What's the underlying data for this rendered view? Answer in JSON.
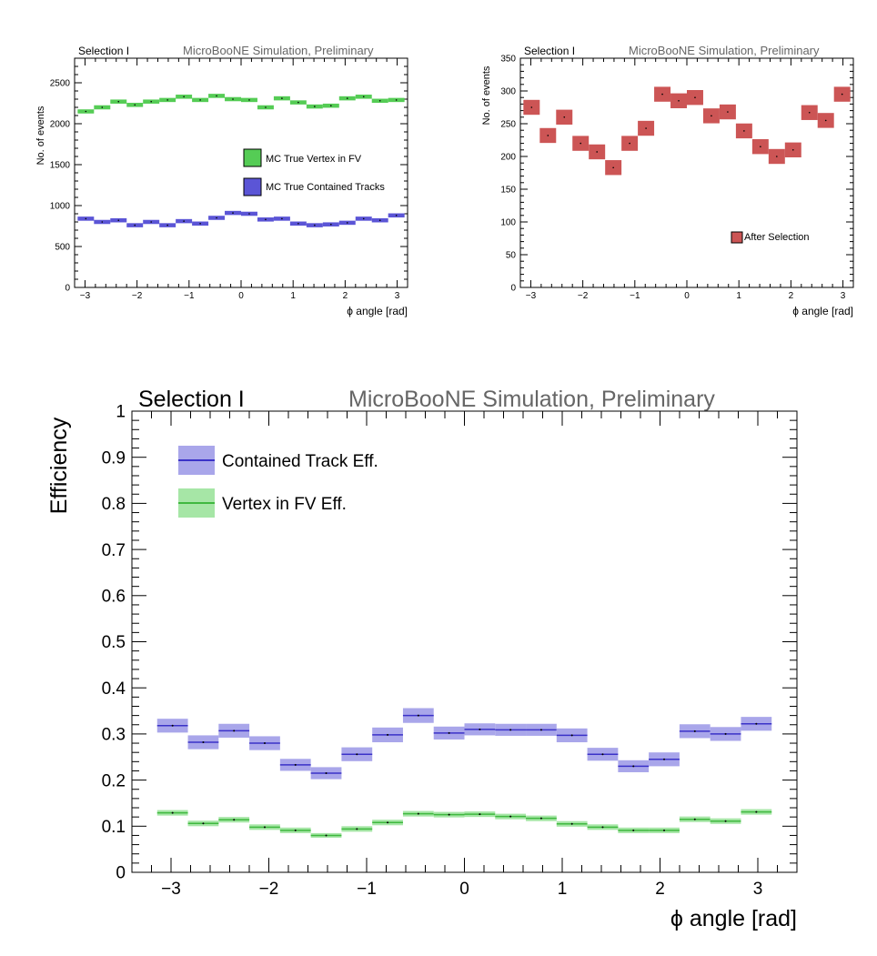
{
  "chart_data": [
    {
      "type": "bar",
      "selection_label": "Selection I",
      "title": "MicroBooNE Simulation, Preliminary",
      "xlabel": "ϕ angle [rad]",
      "ylabel": "No. of events",
      "xlim": [
        -3.2,
        3.2
      ],
      "ylim": [
        0,
        2800
      ],
      "xticks": [
        "−3",
        "−2",
        "−1",
        "0",
        "1",
        "2",
        "3"
      ],
      "yticks": [
        "0",
        "500",
        "1000",
        "1500",
        "2000",
        "2500"
      ],
      "legend_position": "center-right",
      "series": [
        {
          "name": "MC True Vertex in FV",
          "color": "#55cc55",
          "values": [
            2150,
            2200,
            2270,
            2230,
            2270,
            2290,
            2330,
            2290,
            2340,
            2300,
            2290,
            2200,
            2310,
            2260,
            2210,
            2220,
            2310,
            2330,
            2280,
            2290
          ]
        },
        {
          "name": "MC True Contained Tracks",
          "color": "#5b55d6",
          "values": [
            840,
            800,
            820,
            760,
            800,
            760,
            810,
            780,
            850,
            910,
            900,
            830,
            840,
            780,
            760,
            770,
            790,
            840,
            820,
            880
          ]
        }
      ]
    },
    {
      "type": "bar",
      "selection_label": "Selection I",
      "title": "MicroBooNE Simulation, Preliminary",
      "xlabel": "ϕ angle [rad]",
      "ylabel": "No. of events",
      "xlim": [
        -3.2,
        3.2
      ],
      "ylim": [
        0,
        350
      ],
      "xticks": [
        "−3",
        "−2",
        "−1",
        "0",
        "1",
        "2",
        "3"
      ],
      "yticks": [
        "0",
        "50",
        "100",
        "150",
        "200",
        "250",
        "300",
        "350"
      ],
      "legend_position": "bottom-right",
      "series": [
        {
          "name": "After Selection",
          "color": "#cc5555",
          "values": [
            275,
            232,
            260,
            220,
            207,
            183,
            220,
            243,
            295,
            285,
            290,
            262,
            268,
            239,
            215,
            200,
            210,
            267,
            255,
            295
          ]
        }
      ]
    },
    {
      "type": "bar",
      "selection_label": "Selection I",
      "title": "MicroBooNE Simulation, Preliminary",
      "xlabel": "ϕ angle [rad]",
      "ylabel": "Efficiency",
      "xlim": [
        -3.4,
        3.4
      ],
      "ylim": [
        0,
        1
      ],
      "xticks": [
        "−3",
        "−2",
        "−1",
        "0",
        "1",
        "2",
        "3"
      ],
      "yticks": [
        "0",
        "0.1",
        "0.2",
        "0.3",
        "0.4",
        "0.5",
        "0.6",
        "0.7",
        "0.8",
        "0.9",
        "1"
      ],
      "legend_position": "top-left",
      "series": [
        {
          "name": "Contained Track Eff.",
          "color": "#3b32c8",
          "band_color": "#a9a6ea",
          "values": [
            0.318,
            0.282,
            0.307,
            0.28,
            0.233,
            0.215,
            0.256,
            0.298,
            0.34,
            0.302,
            0.31,
            0.309,
            0.309,
            0.297,
            0.256,
            0.23,
            0.245,
            0.306,
            0.3,
            0.322
          ],
          "errors": [
            0.015,
            0.015,
            0.015,
            0.015,
            0.013,
            0.013,
            0.015,
            0.016,
            0.016,
            0.014,
            0.013,
            0.013,
            0.013,
            0.015,
            0.014,
            0.013,
            0.015,
            0.015,
            0.015,
            0.015
          ]
        },
        {
          "name": "Vertex in FV Eff.",
          "color": "#3fb83f",
          "band_color": "#a6e6a6",
          "values": [
            0.129,
            0.106,
            0.114,
            0.098,
            0.091,
            0.08,
            0.094,
            0.108,
            0.127,
            0.125,
            0.126,
            0.121,
            0.117,
            0.105,
            0.098,
            0.091,
            0.091,
            0.115,
            0.111,
            0.131
          ],
          "errors": [
            0.006,
            0.006,
            0.006,
            0.006,
            0.006,
            0.005,
            0.006,
            0.006,
            0.006,
            0.006,
            0.006,
            0.006,
            0.006,
            0.006,
            0.006,
            0.006,
            0.006,
            0.006,
            0.006,
            0.006
          ]
        }
      ]
    }
  ]
}
